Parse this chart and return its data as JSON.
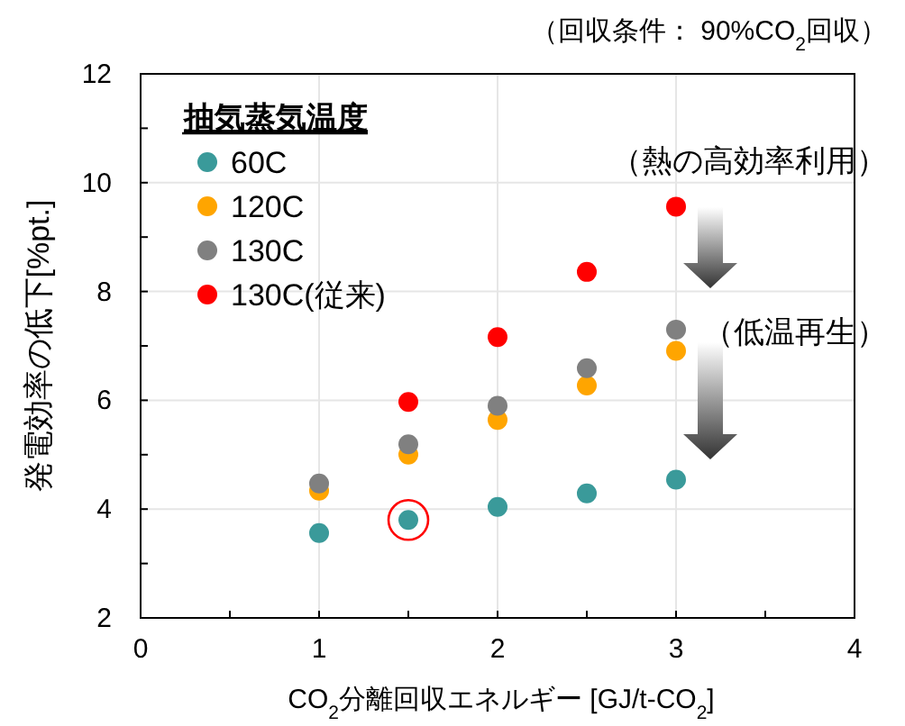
{
  "chart_data": {
    "type": "scatter",
    "xlabel": "CO$_{2}$分離回収エネルギー [GJ/t-CO$_{2}$]",
    "ylabel": "発電効率の低下[%pt.]",
    "legend_title": "抽気蒸気温度",
    "x": [
      1,
      1.5,
      2,
      2.5,
      3
    ],
    "series": [
      {
        "name": "60C",
        "color": "#3a9a9a",
        "values": [
          3.56,
          3.8,
          4.04,
          4.29,
          4.54
        ]
      },
      {
        "name": "120C",
        "color": "#ffa500",
        "values": [
          4.34,
          5.0,
          5.64,
          6.27,
          6.91
        ]
      },
      {
        "name": "130C",
        "color": "#808080",
        "values": [
          4.47,
          5.19,
          5.9,
          6.59,
          7.3
        ]
      },
      {
        "name": "130C(従来)",
        "color": "#ff0000",
        "x": [
          1.5,
          2,
          2.5,
          3
        ],
        "values": [
          5.97,
          7.16,
          8.36,
          9.56
        ]
      }
    ],
    "xlim": [
      0,
      4
    ],
    "ylim": [
      2,
      12
    ],
    "xticks": [
      0,
      {
        "value": 0.5,
        "label": null
      },
      1,
      {
        "value": 1.5,
        "label": null
      },
      2,
      {
        "value": 2.5,
        "label": null
      },
      3,
      {
        "value": 3.5,
        "label": null
      },
      4
    ],
    "yticks": [
      2,
      {
        "value": 3,
        "label": null
      },
      4,
      {
        "value": 5,
        "label": null
      },
      6,
      {
        "value": 7,
        "label": null
      },
      8,
      {
        "value": 9,
        "label": null
      },
      10,
      {
        "value": 11,
        "label": null
      },
      12
    ],
    "grid": true,
    "legend": "top left",
    "marker": "circle",
    "annotations": [
      "（回収条件： 90%CO$_{2}$回収）",
      "（熱の高効率利用）",
      "（低温再生）"
    ]
  }
}
